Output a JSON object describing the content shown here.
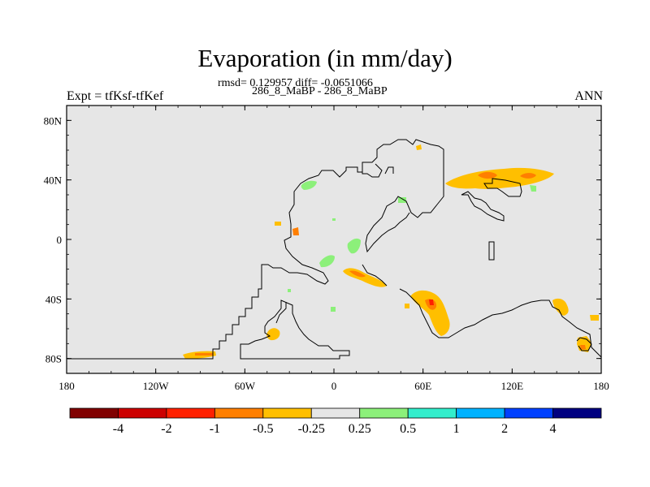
{
  "map": {
    "title": "Evaporation (in mm/day)",
    "stats_line": "rmsd= 0.129957 diff= -0.0651066",
    "case_line": "286_8_MaBP - 286_8_MaBP",
    "expt_label": "Expt = tfKsf-tfKef",
    "season_label": "ANN",
    "lon_ticks": [
      "180",
      "120W",
      "60W",
      "0",
      "60E",
      "120E",
      "180"
    ],
    "lat_ticks": [
      "80N",
      "40N",
      "0",
      "40S",
      "80S"
    ],
    "background_color": "#e6e6e6"
  },
  "colorbar": {
    "colors": [
      "#800000",
      "#cc0000",
      "#ff2000",
      "#ff7f00",
      "#ffbf00",
      "#e6e6e6",
      "#8cf07a",
      "#33eecc",
      "#00b2ff",
      "#0040ff",
      "#000080"
    ],
    "labels": [
      "-4",
      "-2",
      "-1",
      "-0.5",
      "-0.25",
      "0.25",
      "0.5",
      "1",
      "2",
      "4"
    ]
  }
}
